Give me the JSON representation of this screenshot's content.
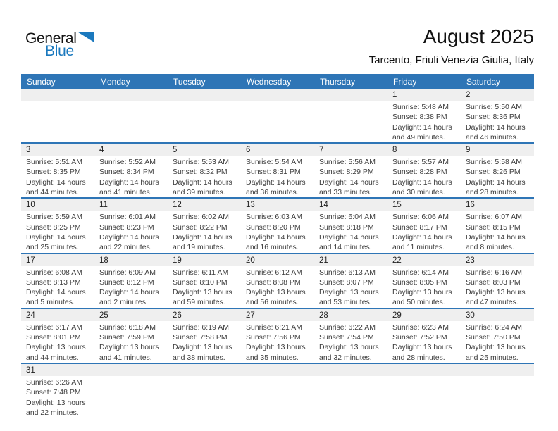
{
  "logo": {
    "part1": "General",
    "part2": "Blue",
    "triangle_icon": "blue-pennant-triangle"
  },
  "header": {
    "title": "August 2025",
    "subtitle": "Tarcento, Friuli Venezia Giulia, Italy"
  },
  "colors": {
    "header_bar_blue": "#2E75B6",
    "week_divider_blue": "#2E75B6",
    "day_number_band_gray": "#EFEFEF",
    "logo_blue": "#1B79BE"
  },
  "calendar": {
    "day_headers": [
      "Sunday",
      "Monday",
      "Tuesday",
      "Wednesday",
      "Thursday",
      "Friday",
      "Saturday"
    ],
    "labels": {
      "sunrise": "Sunrise:",
      "sunset": "Sunset:",
      "daylight": "Daylight:"
    },
    "weeks": [
      [
        null,
        null,
        null,
        null,
        null,
        {
          "day": "1",
          "sunrise": "5:48 AM",
          "sunset": "8:38 PM",
          "daylight": "14 hours and 49 minutes."
        },
        {
          "day": "2",
          "sunrise": "5:50 AM",
          "sunset": "8:36 PM",
          "daylight": "14 hours and 46 minutes."
        }
      ],
      [
        {
          "day": "3",
          "sunrise": "5:51 AM",
          "sunset": "8:35 PM",
          "daylight": "14 hours and 44 minutes."
        },
        {
          "day": "4",
          "sunrise": "5:52 AM",
          "sunset": "8:34 PM",
          "daylight": "14 hours and 41 minutes."
        },
        {
          "day": "5",
          "sunrise": "5:53 AM",
          "sunset": "8:32 PM",
          "daylight": "14 hours and 39 minutes."
        },
        {
          "day": "6",
          "sunrise": "5:54 AM",
          "sunset": "8:31 PM",
          "daylight": "14 hours and 36 minutes."
        },
        {
          "day": "7",
          "sunrise": "5:56 AM",
          "sunset": "8:29 PM",
          "daylight": "14 hours and 33 minutes."
        },
        {
          "day": "8",
          "sunrise": "5:57 AM",
          "sunset": "8:28 PM",
          "daylight": "14 hours and 30 minutes."
        },
        {
          "day": "9",
          "sunrise": "5:58 AM",
          "sunset": "8:26 PM",
          "daylight": "14 hours and 28 minutes."
        }
      ],
      [
        {
          "day": "10",
          "sunrise": "5:59 AM",
          "sunset": "8:25 PM",
          "daylight": "14 hours and 25 minutes."
        },
        {
          "day": "11",
          "sunrise": "6:01 AM",
          "sunset": "8:23 PM",
          "daylight": "14 hours and 22 minutes."
        },
        {
          "day": "12",
          "sunrise": "6:02 AM",
          "sunset": "8:22 PM",
          "daylight": "14 hours and 19 minutes."
        },
        {
          "day": "13",
          "sunrise": "6:03 AM",
          "sunset": "8:20 PM",
          "daylight": "14 hours and 16 minutes."
        },
        {
          "day": "14",
          "sunrise": "6:04 AM",
          "sunset": "8:18 PM",
          "daylight": "14 hours and 14 minutes."
        },
        {
          "day": "15",
          "sunrise": "6:06 AM",
          "sunset": "8:17 PM",
          "daylight": "14 hours and 11 minutes."
        },
        {
          "day": "16",
          "sunrise": "6:07 AM",
          "sunset": "8:15 PM",
          "daylight": "14 hours and 8 minutes."
        }
      ],
      [
        {
          "day": "17",
          "sunrise": "6:08 AM",
          "sunset": "8:13 PM",
          "daylight": "14 hours and 5 minutes."
        },
        {
          "day": "18",
          "sunrise": "6:09 AM",
          "sunset": "8:12 PM",
          "daylight": "14 hours and 2 minutes."
        },
        {
          "day": "19",
          "sunrise": "6:11 AM",
          "sunset": "8:10 PM",
          "daylight": "13 hours and 59 minutes."
        },
        {
          "day": "20",
          "sunrise": "6:12 AM",
          "sunset": "8:08 PM",
          "daylight": "13 hours and 56 minutes."
        },
        {
          "day": "21",
          "sunrise": "6:13 AM",
          "sunset": "8:07 PM",
          "daylight": "13 hours and 53 minutes."
        },
        {
          "day": "22",
          "sunrise": "6:14 AM",
          "sunset": "8:05 PM",
          "daylight": "13 hours and 50 minutes."
        },
        {
          "day": "23",
          "sunrise": "6:16 AM",
          "sunset": "8:03 PM",
          "daylight": "13 hours and 47 minutes."
        }
      ],
      [
        {
          "day": "24",
          "sunrise": "6:17 AM",
          "sunset": "8:01 PM",
          "daylight": "13 hours and 44 minutes."
        },
        {
          "day": "25",
          "sunrise": "6:18 AM",
          "sunset": "7:59 PM",
          "daylight": "13 hours and 41 minutes."
        },
        {
          "day": "26",
          "sunrise": "6:19 AM",
          "sunset": "7:58 PM",
          "daylight": "13 hours and 38 minutes."
        },
        {
          "day": "27",
          "sunrise": "6:21 AM",
          "sunset": "7:56 PM",
          "daylight": "13 hours and 35 minutes."
        },
        {
          "day": "28",
          "sunrise": "6:22 AM",
          "sunset": "7:54 PM",
          "daylight": "13 hours and 32 minutes."
        },
        {
          "day": "29",
          "sunrise": "6:23 AM",
          "sunset": "7:52 PM",
          "daylight": "13 hours and 28 minutes."
        },
        {
          "day": "30",
          "sunrise": "6:24 AM",
          "sunset": "7:50 PM",
          "daylight": "13 hours and 25 minutes."
        }
      ],
      [
        {
          "day": "31",
          "sunrise": "6:26 AM",
          "sunset": "7:48 PM",
          "daylight": "13 hours and 22 minutes."
        },
        null,
        null,
        null,
        null,
        null,
        null
      ]
    ]
  }
}
